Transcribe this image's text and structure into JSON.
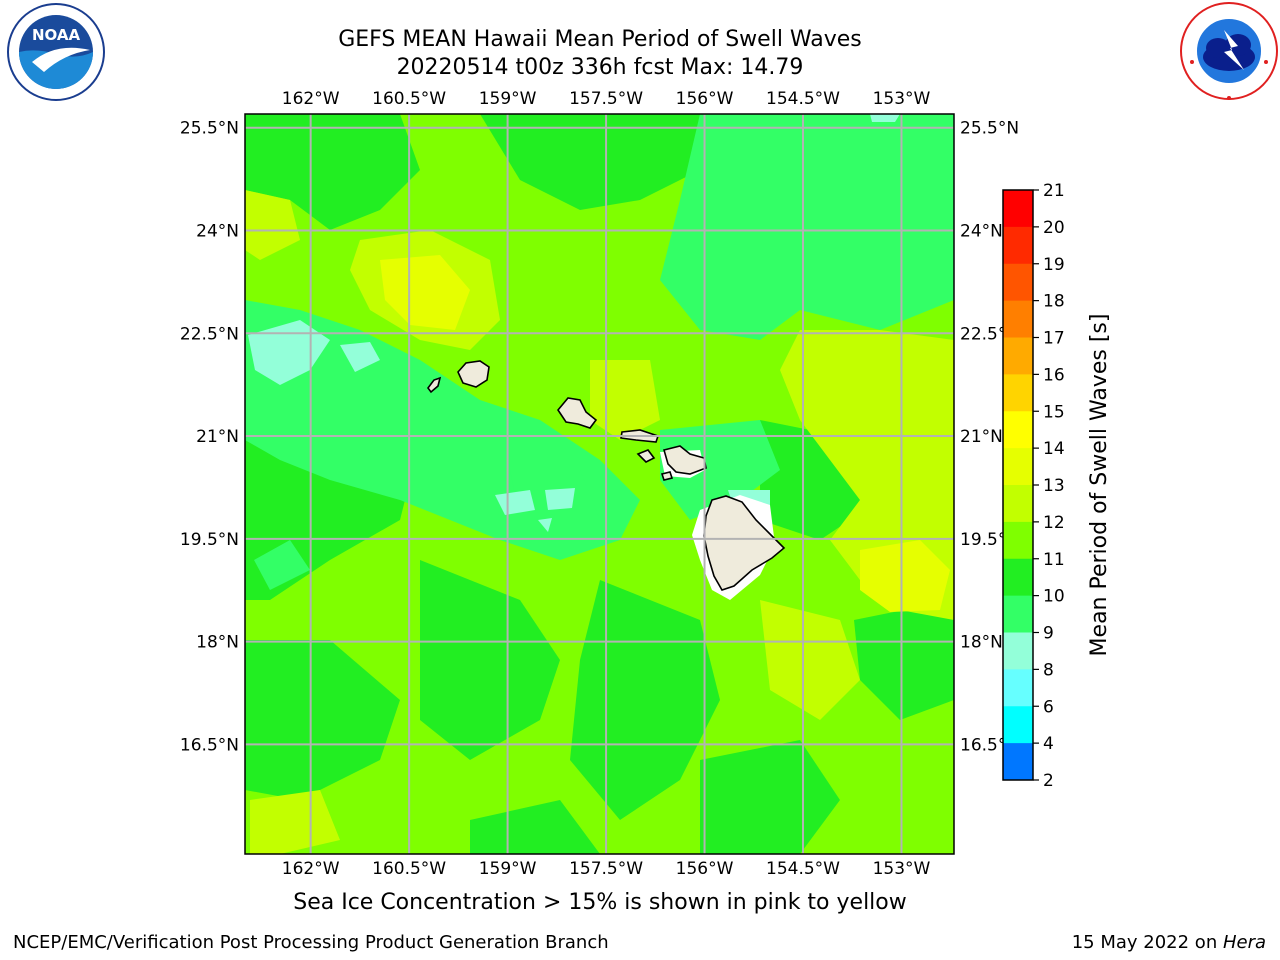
{
  "header": {
    "title_line1": "GEFS MEAN Hawaii Mean Period of Swell Waves",
    "title_line2": "20220514 t00z 336h fcst   Max: 14.79"
  },
  "logos": {
    "left": {
      "name": "NOAA",
      "ring_text": "NATIONAL OCEANIC AND ATMOSPHERIC ADMINISTRATION",
      "bottom_text": "U.S. DEPARTMENT OF COMMERCE"
    },
    "right": {
      "name": "NATIONAL WEATHER SERVICE"
    }
  },
  "map": {
    "lon_range": [
      -163.0,
      -152.2
    ],
    "lat_range": [
      14.9,
      25.7
    ],
    "lon_ticks": [
      "162°W",
      "160.5°W",
      "159°W",
      "157.5°W",
      "156°W",
      "154.5°W",
      "153°W"
    ],
    "lon_tick_values": [
      -162,
      -160.5,
      -159,
      -157.5,
      -156,
      -154.5,
      -153
    ],
    "lat_ticks": [
      "25.5°N",
      "24°N",
      "22.5°N",
      "21°N",
      "19.5°N",
      "18°N",
      "16.5°N"
    ],
    "lat_tick_values": [
      25.5,
      24,
      22.5,
      21,
      19.5,
      18,
      16.5
    ],
    "grid": true,
    "field_colors": {
      "c9_10": "#93ffd9",
      "c10_11": "#33ff66",
      "c11_12": "#22ee22",
      "c12_13": "#7fff00",
      "c13_14": "#c2ff00",
      "c14_15": "#e6ff00",
      "land": "#efebdc",
      "coast": "#000000",
      "gridline": "#b3b3b3"
    },
    "islands": [
      "Niihau",
      "Kauai",
      "Oahu",
      "Molokai",
      "Lanai",
      "Maui",
      "Kahoolawe",
      "Hawaii"
    ]
  },
  "colorbar": {
    "label": "Mean Period of Swell Waves [s]",
    "ticks": [
      "21",
      "20",
      "19",
      "18",
      "17",
      "16",
      "15",
      "14",
      "13",
      "12",
      "11",
      "10",
      "9",
      "8",
      "6",
      "4",
      "2"
    ],
    "colors": [
      "#ff0000",
      "#ff2a00",
      "#ff5500",
      "#ff7f00",
      "#ffaa00",
      "#ffd400",
      "#ffff00",
      "#e6ff00",
      "#c2ff00",
      "#7fff00",
      "#22ee22",
      "#33ff66",
      "#93ffd9",
      "#66ffff",
      "#00ffff",
      "#0077ff",
      "#0000ff"
    ]
  },
  "footer": {
    "note": "Sea Ice Concentration > 15% is shown in pink to yellow",
    "credit_left": "NCEP/EMC/Verification Post Processing Product Generation Branch",
    "credit_date": "15 May 2022 on ",
    "credit_host": "Hera"
  }
}
